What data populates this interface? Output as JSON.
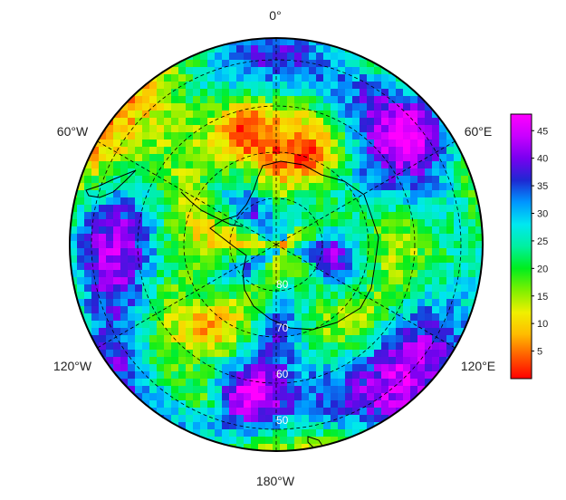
{
  "map": {
    "projection": "south-polar-stereographic",
    "meridian_labels": {
      "top": "0°",
      "upper_left": "60°W",
      "upper_right": "60°E",
      "lower_left": "120°W",
      "lower_right": "120°E",
      "bottom": "180°W"
    },
    "latitude_labels": [
      "50",
      "60",
      "70",
      "80"
    ]
  },
  "colorbar": {
    "ticks": [
      "5",
      "10",
      "15",
      "20",
      "25",
      "30",
      "35",
      "40",
      "45"
    ],
    "min": 0,
    "max": 48,
    "palette": [
      "#ff0000",
      "#ff5a00",
      "#ffbb00",
      "#f0f000",
      "#7ef000",
      "#00ee1e",
      "#00f0a0",
      "#00e8f0",
      "#0096ff",
      "#1e28d2",
      "#7800f0",
      "#c800ff",
      "#ff00ff"
    ]
  },
  "colors": {
    "coastline": "#000000",
    "grid": "#000000",
    "frame": "#000000"
  }
}
